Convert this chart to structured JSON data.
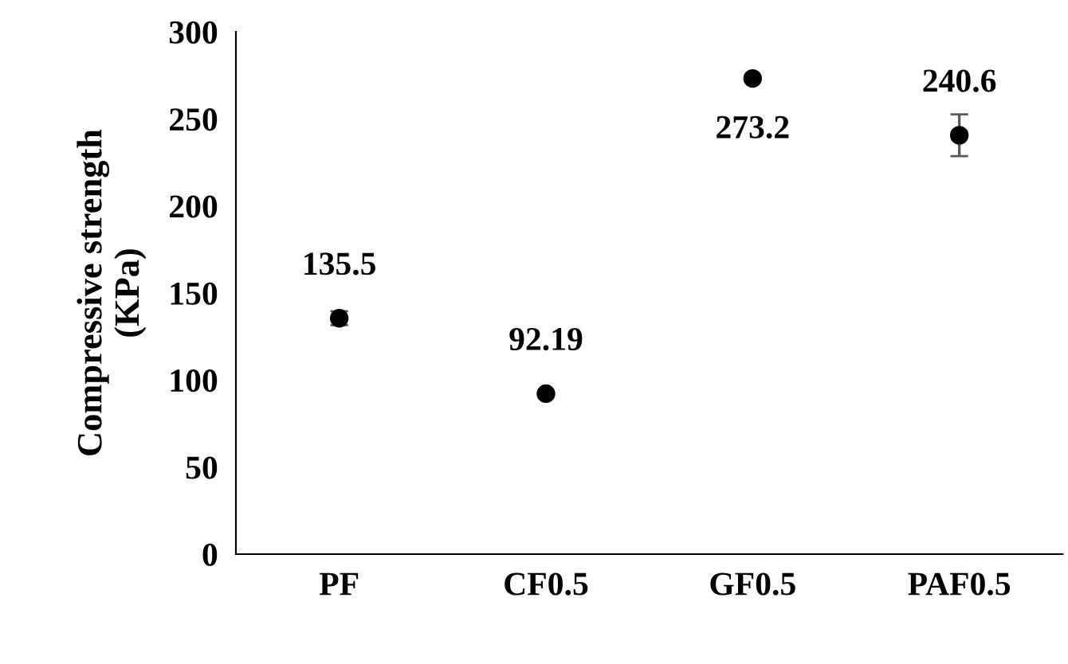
{
  "chart_data": {
    "type": "scatter",
    "ylabel": "Compressive strength\n(KPa)",
    "categories": [
      "PF",
      "CF0.5",
      "GF0.5",
      "PAF0.5"
    ],
    "series": [
      {
        "color": "#000000",
        "values": [
          135.5,
          92.19,
          273.2,
          240.6
        ],
        "errors": [
          4,
          null,
          null,
          12
        ]
      }
    ],
    "data_labels": true,
    "marker": "circle",
    "ylim": [
      0,
      300
    ],
    "yticks": [
      0,
      50,
      100,
      150,
      200,
      250,
      300
    ],
    "grid": false,
    "legend": false
  }
}
